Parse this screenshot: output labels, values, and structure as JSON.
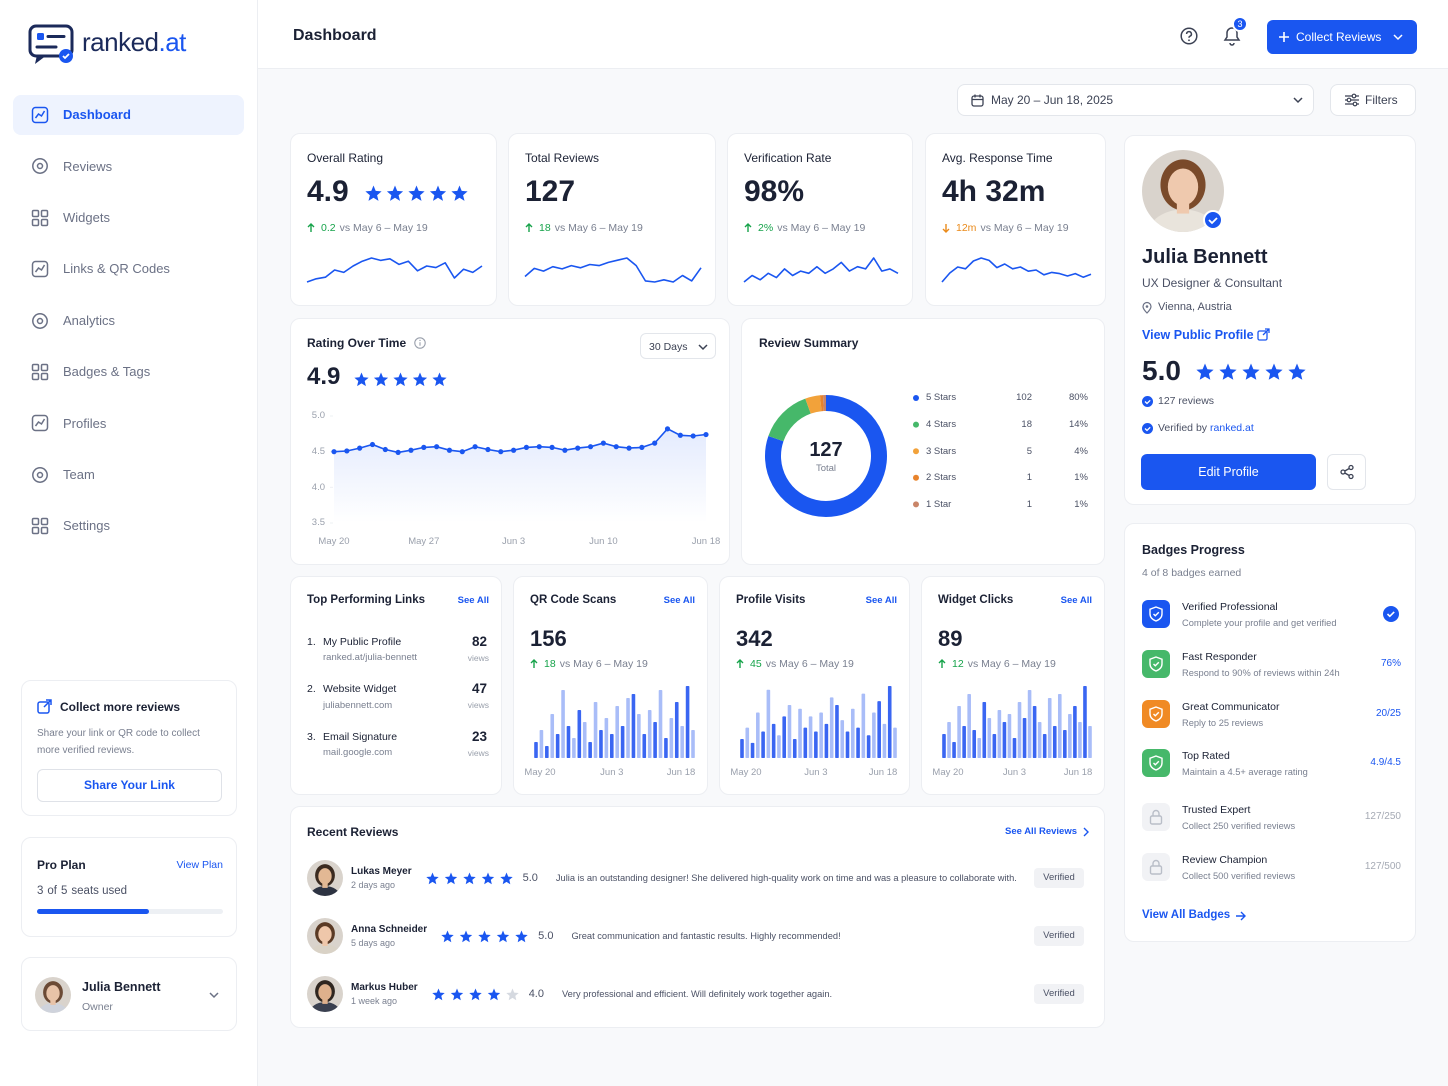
{
  "sidebar": {
    "brand": {
      "name": "ranked",
      "suffix": ".at"
    },
    "nav": [
      {
        "label": "Dashboard",
        "active": true
      },
      {
        "label": "Reviews"
      },
      {
        "label": "Widgets"
      },
      {
        "label": "Links & QR Codes"
      },
      {
        "label": "Analytics"
      },
      {
        "label": "Badges & Tags"
      },
      {
        "label": "Profiles"
      },
      {
        "label": "Team"
      },
      {
        "label": "Settings"
      }
    ],
    "promo": {
      "title": "Collect more reviews",
      "text": "Share your link or QR code to collect more verified reviews.",
      "button": "Share Your Link"
    },
    "plan": {
      "name": "Pro Plan",
      "link": "View Plan",
      "used": 3,
      "of": "of",
      "total": 5,
      "unit": "seats used"
    },
    "user": {
      "name": "Julia Bennett",
      "role": "Owner"
    }
  },
  "header": {
    "title": "Dashboard",
    "notifications": 3,
    "button": "Collect Reviews",
    "date_range": "May 20 – Jun 18, 2025",
    "filters": "Filters"
  },
  "stats": [
    {
      "title": "Overall Rating",
      "value": 4.9,
      "show_stars": true,
      "change": 0.2,
      "trend": "up",
      "compare": "vs May 6 – May 19",
      "spark": [
        3,
        3.4,
        3.6,
        4.5,
        4.2,
        5,
        5.6,
        6,
        5.7,
        5.9,
        5.2,
        5.6,
        4.4,
        5,
        4.8,
        5.4,
        3.5,
        4.6,
        4.2,
        5
      ]
    },
    {
      "title": "Total Reviews",
      "value": 127,
      "change": 18,
      "trend": "up",
      "compare": "vs May 6 – May 19",
      "spark": [
        3,
        4.5,
        4,
        4.8,
        4.4,
        5,
        4.6,
        5.2,
        5,
        5.6,
        6,
        6.4,
        5,
        2.2,
        2,
        2.4,
        2,
        3.2,
        2.2,
        4.6
      ]
    },
    {
      "title": "Verification Rate",
      "value": "98%",
      "change": "2%",
      "trend": "up",
      "compare": "vs May 6 – May 19",
      "spark": [
        4,
        4.3,
        4.1,
        4.4,
        4.2,
        4.6,
        4.3,
        4.5,
        4.4,
        4.7,
        4.4,
        4.6,
        4.9,
        4.5,
        4.7,
        4.6,
        5.1,
        4.5,
        4.6,
        4.4
      ]
    },
    {
      "title": "Avg. Response Time",
      "value": "4h 32m",
      "change": "12m",
      "trend": "down",
      "compare": "vs May 6 – May 19",
      "spark": [
        2,
        3.5,
        4.5,
        4.2,
        5.5,
        6,
        5.6,
        4.4,
        5,
        4.2,
        4.5,
        3.8,
        4,
        3.2,
        3.6,
        3.4,
        3,
        3.4,
        2.8,
        3.3
      ]
    }
  ],
  "rating_chart": {
    "type": "line",
    "title": "Rating Over Time",
    "value": 4.9,
    "period": "30 Days",
    "color": "#1a56f0",
    "categories": [
      "May 20",
      null,
      null,
      null,
      null,
      null,
      null,
      "May 27",
      null,
      null,
      null,
      null,
      null,
      null,
      "Jun 3",
      null,
      null,
      null,
      null,
      null,
      null,
      "Jun 10",
      null,
      null,
      null,
      null,
      null,
      null,
      null,
      "Jun 18"
    ],
    "values": [
      4.5,
      4.51,
      4.55,
      4.6,
      4.53,
      4.49,
      4.52,
      4.56,
      4.57,
      4.52,
      4.5,
      4.57,
      4.53,
      4.5,
      4.52,
      4.56,
      4.57,
      4.56,
      4.52,
      4.55,
      4.57,
      4.62,
      4.57,
      4.55,
      4.56,
      4.62,
      4.82,
      4.73,
      4.72,
      4.74
    ],
    "ylim": [
      3.5,
      5
    ],
    "yticks": [
      3.5,
      {
        "value": 4,
        "label": "4.0"
      },
      4.5,
      {
        "value": 5,
        "label": "5.0"
      }
    ]
  },
  "review_summary": {
    "type": "donut",
    "title": "Review Summary",
    "total": 127,
    "total_label": "Total",
    "labels": [
      "5 Stars",
      "4 Stars",
      "3 Stars",
      "2 Stars",
      "1 Star"
    ],
    "values": [
      102,
      18,
      5,
      1,
      1
    ],
    "percents": [
      "80%",
      "14%",
      "4%",
      "1%",
      "1%"
    ],
    "colors": [
      "#1a56f0",
      "#46b86a",
      "#f2a23a",
      "#e8832b",
      "#c98568"
    ]
  },
  "links": {
    "title": "Top Performing Links",
    "see_all": "See All",
    "unit": "views",
    "items": [
      {
        "rank": "1.",
        "name": "My Public Profile",
        "url": "ranked.at/julia-bennett",
        "views": 82
      },
      {
        "rank": "2.",
        "name": "Website Widget",
        "url": "juliabennett.com",
        "views": 47
      },
      {
        "rank": "3.",
        "name": "Email Signature",
        "url": "mail.google.com",
        "views": 23
      }
    ]
  },
  "metrics": [
    {
      "type": "bar",
      "title": "QR Code Scans",
      "see_all": "See All",
      "value": 156,
      "change": 18,
      "compare": "vs May 6 – May 19",
      "categories": [
        "May 20",
        null,
        null,
        null,
        null,
        null,
        null,
        null,
        null,
        null,
        null,
        null,
        null,
        null,
        "Jun 3",
        null,
        null,
        null,
        null,
        null,
        null,
        null,
        null,
        null,
        null,
        null,
        null,
        null,
        null,
        "Jun 18"
      ],
      "values": [
        20,
        35,
        15,
        55,
        30,
        85,
        40,
        25,
        60,
        45,
        20,
        70,
        35,
        50,
        30,
        65,
        40,
        75,
        80,
        55,
        30,
        60,
        45,
        85,
        25,
        50,
        70,
        40,
        90,
        35
      ],
      "colors": [
        "#3a66f2",
        "#a9bdf8"
      ]
    },
    {
      "type": "bar",
      "title": "Profile Visits",
      "see_all": "See All",
      "value": 342,
      "change": 45,
      "compare": "vs May 6 – May 19",
      "categories": [
        "May 20",
        null,
        null,
        null,
        null,
        null,
        null,
        null,
        null,
        null,
        null,
        null,
        null,
        null,
        "Jun 3",
        null,
        null,
        null,
        null,
        null,
        null,
        null,
        null,
        null,
        null,
        null,
        null,
        null,
        null,
        "Jun 18"
      ],
      "values": [
        25,
        40,
        20,
        60,
        35,
        90,
        45,
        30,
        55,
        70,
        25,
        65,
        40,
        55,
        35,
        60,
        45,
        80,
        70,
        50,
        35,
        65,
        40,
        85,
        30,
        60,
        75,
        45,
        95,
        40
      ],
      "colors": [
        "#3a66f2",
        "#a9bdf8"
      ]
    },
    {
      "type": "bar",
      "title": "Widget Clicks",
      "see_all": "See All",
      "value": 89,
      "change": 12,
      "compare": "vs May 6 – May 19",
      "categories": [
        "May 20",
        null,
        null,
        null,
        null,
        null,
        null,
        null,
        null,
        null,
        null,
        null,
        null,
        null,
        "Jun 3",
        null,
        null,
        null,
        null,
        null,
        null,
        null,
        null,
        null,
        null,
        null,
        null,
        null,
        null,
        "Jun 18"
      ],
      "values": [
        30,
        45,
        20,
        65,
        40,
        80,
        35,
        25,
        70,
        50,
        30,
        60,
        45,
        55,
        25,
        70,
        50,
        85,
        65,
        45,
        30,
        75,
        40,
        80,
        35,
        55,
        65,
        45,
        90,
        40
      ],
      "colors": [
        "#3a66f2",
        "#a9bdf8"
      ]
    }
  ],
  "reviews": {
    "title": "Recent Reviews",
    "see_all": "See All Reviews",
    "items": [
      {
        "name": "Lukas Meyer",
        "time": "2 days ago",
        "rating": 5,
        "rating_label": "5.0",
        "text": "Julia is an outstanding designer! She delivered high-quality work on time and was a pleasure to collaborate with.",
        "status": "Verified"
      },
      {
        "name": "Anna Schneider",
        "time": "5 days ago",
        "rating": 5,
        "rating_label": "5.0",
        "text": "Great communication and fantastic results. Highly recommended!",
        "status": "Verified"
      },
      {
        "name": "Markus Huber",
        "time": "1 week ago",
        "rating": 4,
        "rating_label": "4.0",
        "text": "Very professional and efficient. Will definitely work together again.",
        "status": "Verified"
      }
    ]
  },
  "profile": {
    "name": "Julia Bennett",
    "headline": "UX Designer & Consultant",
    "location": "Vienna, Austria",
    "link": "View Public Profile",
    "rating": 5,
    "rating_label": "5.0",
    "reviews": "127 reviews",
    "verified_by": "Verified by",
    "verifier": "ranked.at",
    "button": "Edit Profile"
  },
  "badges": {
    "title": "Badges Progress",
    "subtitle": "4 of 8 badges earned",
    "link": "View All Badges",
    "items": [
      {
        "name": "Verified Professional",
        "desc": "Complete your profile and get verified",
        "color": "#1a56f0"
      },
      {
        "name": "Fast Responder",
        "desc": "Respond to 90% of reviews within 24h",
        "progress": "76%",
        "color": "#46b86a"
      },
      {
        "name": "Great Communicator",
        "desc": "Reply to 25 reviews",
        "progress": "20/25",
        "color": "#f08a24"
      },
      {
        "name": "Top Rated",
        "desc": "Maintain a 4.5+ average rating",
        "progress": "4.9/4.5",
        "color": "#46b86a"
      },
      {
        "name": "Trusted Expert",
        "desc": "Collect 250 verified reviews",
        "progress": "127/250",
        "color": "#b9bec8",
        "locked": true
      },
      {
        "name": "Review Champion",
        "desc": "Collect 500 verified reviews",
        "progress": "127/500",
        "color": "#b9bec8",
        "locked": true
      }
    ]
  }
}
